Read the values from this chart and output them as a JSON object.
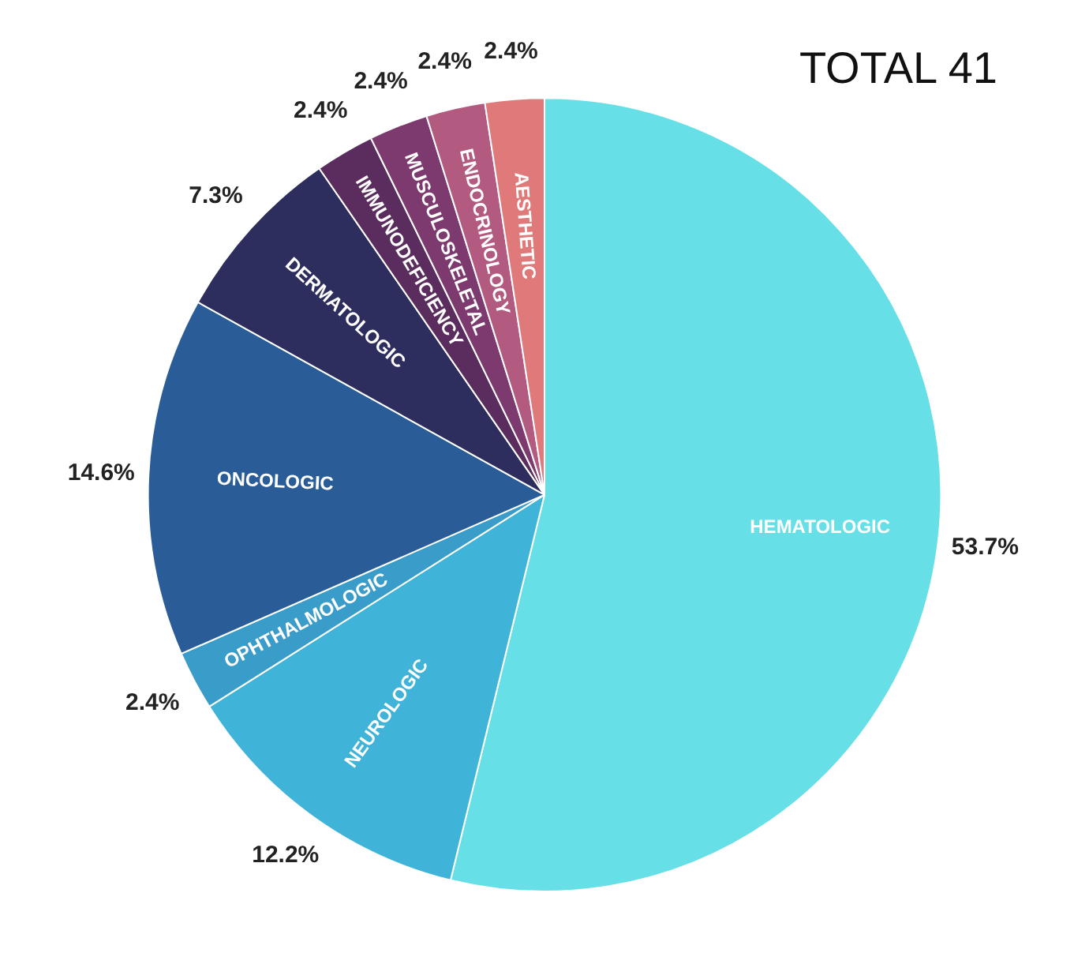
{
  "chart_data": {
    "type": "pie",
    "title": "TOTAL 41",
    "categories": [
      "HEMATOLOGIC",
      "NEUROLOGIC",
      "OPHTHALMOLOGIC",
      "ONCOLOGIC",
      "DERMATOLOGIC",
      "IMMUNODEFICIENCY",
      "MUSCULOSKELETAL",
      "ENDOCRINOLOGY",
      "AESTHETIC"
    ],
    "values": [
      53.7,
      12.2,
      2.4,
      14.6,
      7.3,
      2.4,
      2.4,
      2.4,
      2.4
    ],
    "value_labels": [
      "53.7%",
      "12.2%",
      "2.4%",
      "14.6%",
      "7.3%",
      "2.4%",
      "2.4%",
      "2.4%",
      "2.4%"
    ],
    "colors": [
      "#66e0e6",
      "#3fb4d8",
      "#3a9cc8",
      "#2a5d97",
      "#2d2d5e",
      "#5a2d5e",
      "#7d3a6e",
      "#b35a80",
      "#e07a7a"
    ],
    "legend": false
  }
}
